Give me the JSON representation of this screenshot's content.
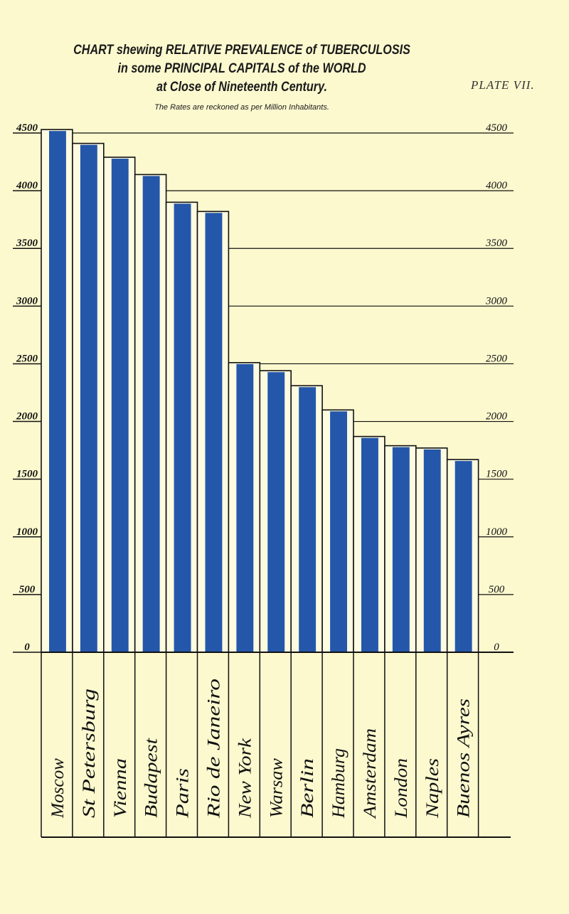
{
  "chart_data": {
    "type": "bar",
    "title": [
      "CHART shewing RELATIVE PREVALENCE of TUBERCULOSIS",
      "in some PRINCIPAL CAPITALS of the WORLD",
      "at Close of Nineteenth Century."
    ],
    "subtitle": "The Rates are reckoned as per Million Inhabitants.",
    "plate": "PLATE VII.",
    "categories": [
      "Moscow",
      "St Petersburg",
      "Vienna",
      "Budapest",
      "Paris",
      "Rio de Janeiro",
      "New York",
      "Warsaw",
      "Berlin",
      "Hamburg",
      "Amsterdam",
      "London",
      "Naples",
      "Buenos Ayres"
    ],
    "values": [
      4530,
      4410,
      4290,
      4140,
      3900,
      3820,
      2510,
      2440,
      2310,
      2100,
      1870,
      1790,
      1770,
      1670
    ],
    "yticks": [
      0,
      500,
      1000,
      1500,
      2000,
      2500,
      3000,
      3500,
      4000,
      4500
    ],
    "ylim": [
      0,
      4500
    ],
    "grid": true,
    "colors": {
      "bar": "#2457aa",
      "background": "#fcf9cf",
      "frame": "#111111"
    }
  }
}
